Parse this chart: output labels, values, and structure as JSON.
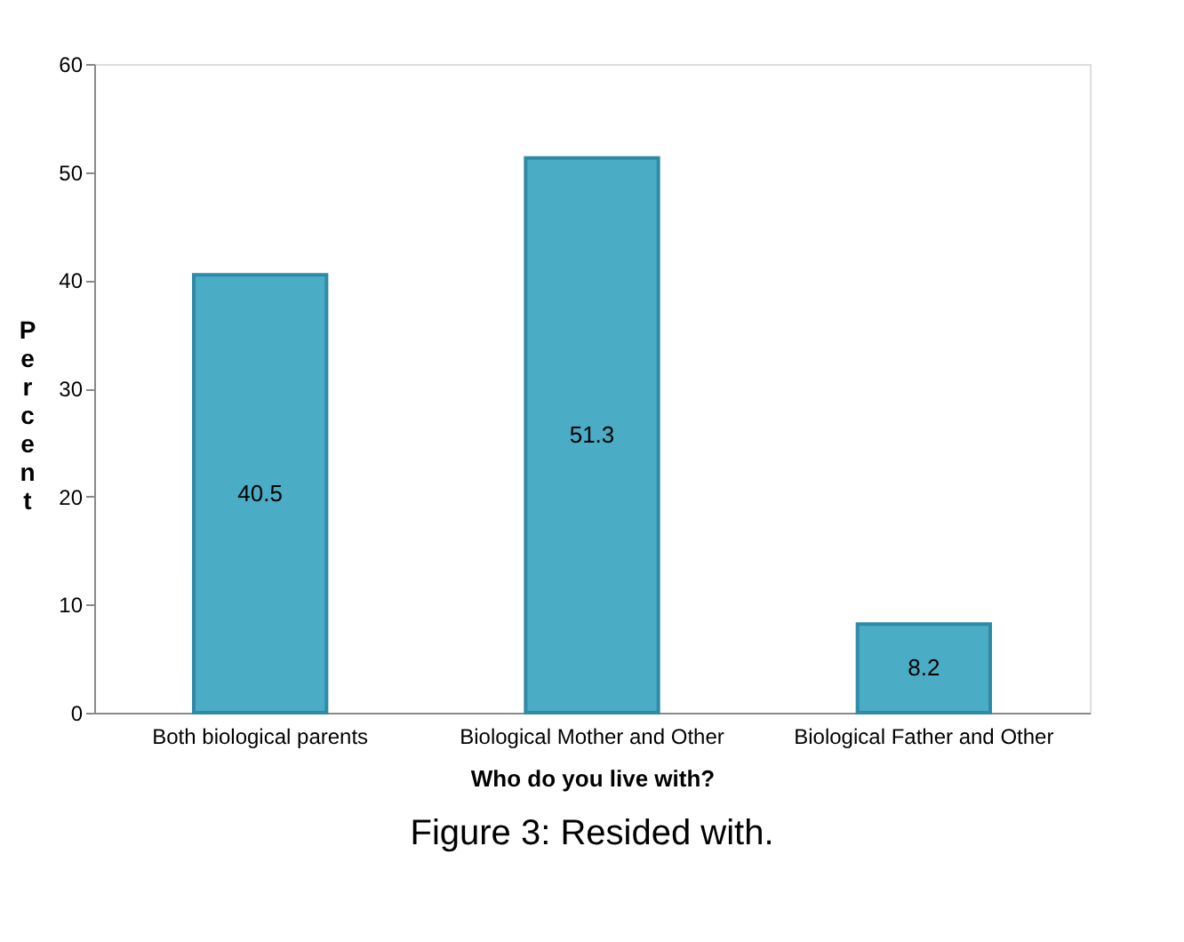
{
  "chart_data": {
    "type": "bar",
    "categories": [
      "Both biological parents",
      "Biological Mother and Other",
      "Biological Father and Other"
    ],
    "values": [
      40.5,
      51.3,
      8.2
    ],
    "color": "#4bacc6",
    "xlabel": "Who do you live with?",
    "ylabel": "Percent",
    "ylim": [
      0,
      60
    ],
    "yticks": [
      0,
      10,
      20,
      30,
      40,
      50,
      60
    ],
    "grid": false,
    "data_labels": true,
    "annotations": [
      "Figure 3: Resided with."
    ]
  }
}
